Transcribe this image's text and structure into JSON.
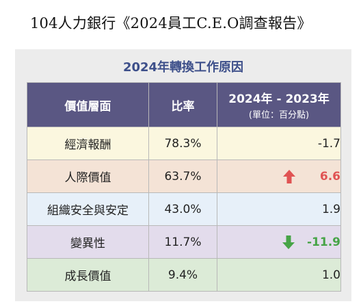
{
  "page": {
    "title": "104人力銀行《2024員工C.E.O調查報告》"
  },
  "card": {
    "title": "2024年轉換工作原因"
  },
  "table": {
    "headers": {
      "category": "價值層面",
      "rate": "比率",
      "change": "2024年 - 2023年",
      "change_unit": "(單位：百分點)"
    },
    "rows": [
      {
        "category": "經濟報酬",
        "rate": "78.3%",
        "change": "-1.7",
        "trend": "none"
      },
      {
        "category": "人際價值",
        "rate": "63.7%",
        "change": "6.6",
        "trend": "up"
      },
      {
        "category": "組織安全與安定",
        "rate": "43.0%",
        "change": "1.9",
        "trend": "none"
      },
      {
        "category": "變異性",
        "rate": "11.7%",
        "change": "-11.9",
        "trend": "down"
      },
      {
        "category": "成長價值",
        "rate": "9.4%",
        "change": "1.0",
        "trend": "none"
      }
    ]
  },
  "colors": {
    "header_bg": "#5a5783",
    "title_color": "#3d4f8a",
    "up_color": "#e05353",
    "down_color": "#47a447",
    "row_backgrounds": [
      "#fbf7df",
      "#f4e3d6",
      "#e7f0f9",
      "#e3dcec",
      "#dcebd7"
    ]
  },
  "icons": {
    "up": "arrow-up-icon",
    "down": "arrow-down-icon"
  }
}
